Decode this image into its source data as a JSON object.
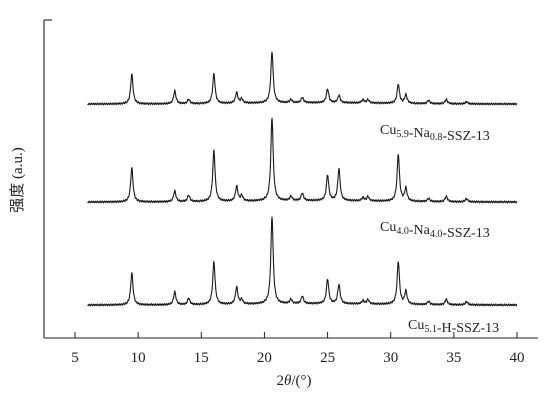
{
  "chart_data": {
    "type": "line",
    "xlabel_prefix": "2",
    "xlabel_theta": "θ",
    "xlabel_suffix": "/(°)",
    "ylabel": "强度 (a.u.)",
    "xlim": [
      5,
      40
    ],
    "xticks": [
      5,
      10,
      15,
      20,
      25,
      30,
      35,
      40
    ],
    "yticks_shown": false,
    "grid": false,
    "series": [
      {
        "label_main_1": "Cu",
        "label_sub_1": "5.9",
        "label_main_2": "-Na",
        "label_sub_2": "0.8",
        "label_main_3": "-SSZ-13",
        "offset": 2,
        "peaks": [
          [
            9.5,
            0.28
          ],
          [
            12.9,
            0.12
          ],
          [
            14.0,
            0.04
          ],
          [
            16.0,
            0.28
          ],
          [
            17.8,
            0.1
          ],
          [
            18.2,
            0.04
          ],
          [
            20.6,
            0.48
          ],
          [
            22.1,
            0.03
          ],
          [
            23.0,
            0.05
          ],
          [
            25.0,
            0.13
          ],
          [
            25.9,
            0.07
          ],
          [
            27.8,
            0.03
          ],
          [
            28.2,
            0.03
          ],
          [
            30.6,
            0.18
          ],
          [
            31.2,
            0.08
          ],
          [
            33.0,
            0.03
          ],
          [
            34.4,
            0.04
          ],
          [
            36.0,
            0.02
          ]
        ]
      },
      {
        "label_main_1": "Cu",
        "label_sub_1": "4.0",
        "label_main_2": "-Na",
        "label_sub_2": "4.0",
        "label_main_3": "-SSZ-13",
        "offset": 1,
        "peaks": [
          [
            9.5,
            0.32
          ],
          [
            12.9,
            0.1
          ],
          [
            14.0,
            0.06
          ],
          [
            16.0,
            0.48
          ],
          [
            17.8,
            0.14
          ],
          [
            18.2,
            0.05
          ],
          [
            20.6,
            0.78
          ],
          [
            22.1,
            0.04
          ],
          [
            23.0,
            0.07
          ],
          [
            25.0,
            0.24
          ],
          [
            25.9,
            0.3
          ],
          [
            27.8,
            0.03
          ],
          [
            28.2,
            0.04
          ],
          [
            30.6,
            0.44
          ],
          [
            31.2,
            0.12
          ],
          [
            33.0,
            0.03
          ],
          [
            34.4,
            0.05
          ],
          [
            36.0,
            0.03
          ]
        ]
      },
      {
        "label_main_1": "Cu",
        "label_sub_1": "5.1",
        "label_main_2": "-H-SSZ-13",
        "label_sub_2": "",
        "label_main_3": "",
        "offset": 0,
        "peaks": [
          [
            9.5,
            0.3
          ],
          [
            12.9,
            0.12
          ],
          [
            14.0,
            0.06
          ],
          [
            16.0,
            0.4
          ],
          [
            17.8,
            0.16
          ],
          [
            18.2,
            0.04
          ],
          [
            20.6,
            0.82
          ],
          [
            22.1,
            0.04
          ],
          [
            23.0,
            0.07
          ],
          [
            25.0,
            0.23
          ],
          [
            25.9,
            0.18
          ],
          [
            27.8,
            0.03
          ],
          [
            28.2,
            0.04
          ],
          [
            30.6,
            0.4
          ],
          [
            31.2,
            0.12
          ],
          [
            33.0,
            0.03
          ],
          [
            34.4,
            0.05
          ],
          [
            36.0,
            0.03
          ]
        ]
      }
    ]
  }
}
